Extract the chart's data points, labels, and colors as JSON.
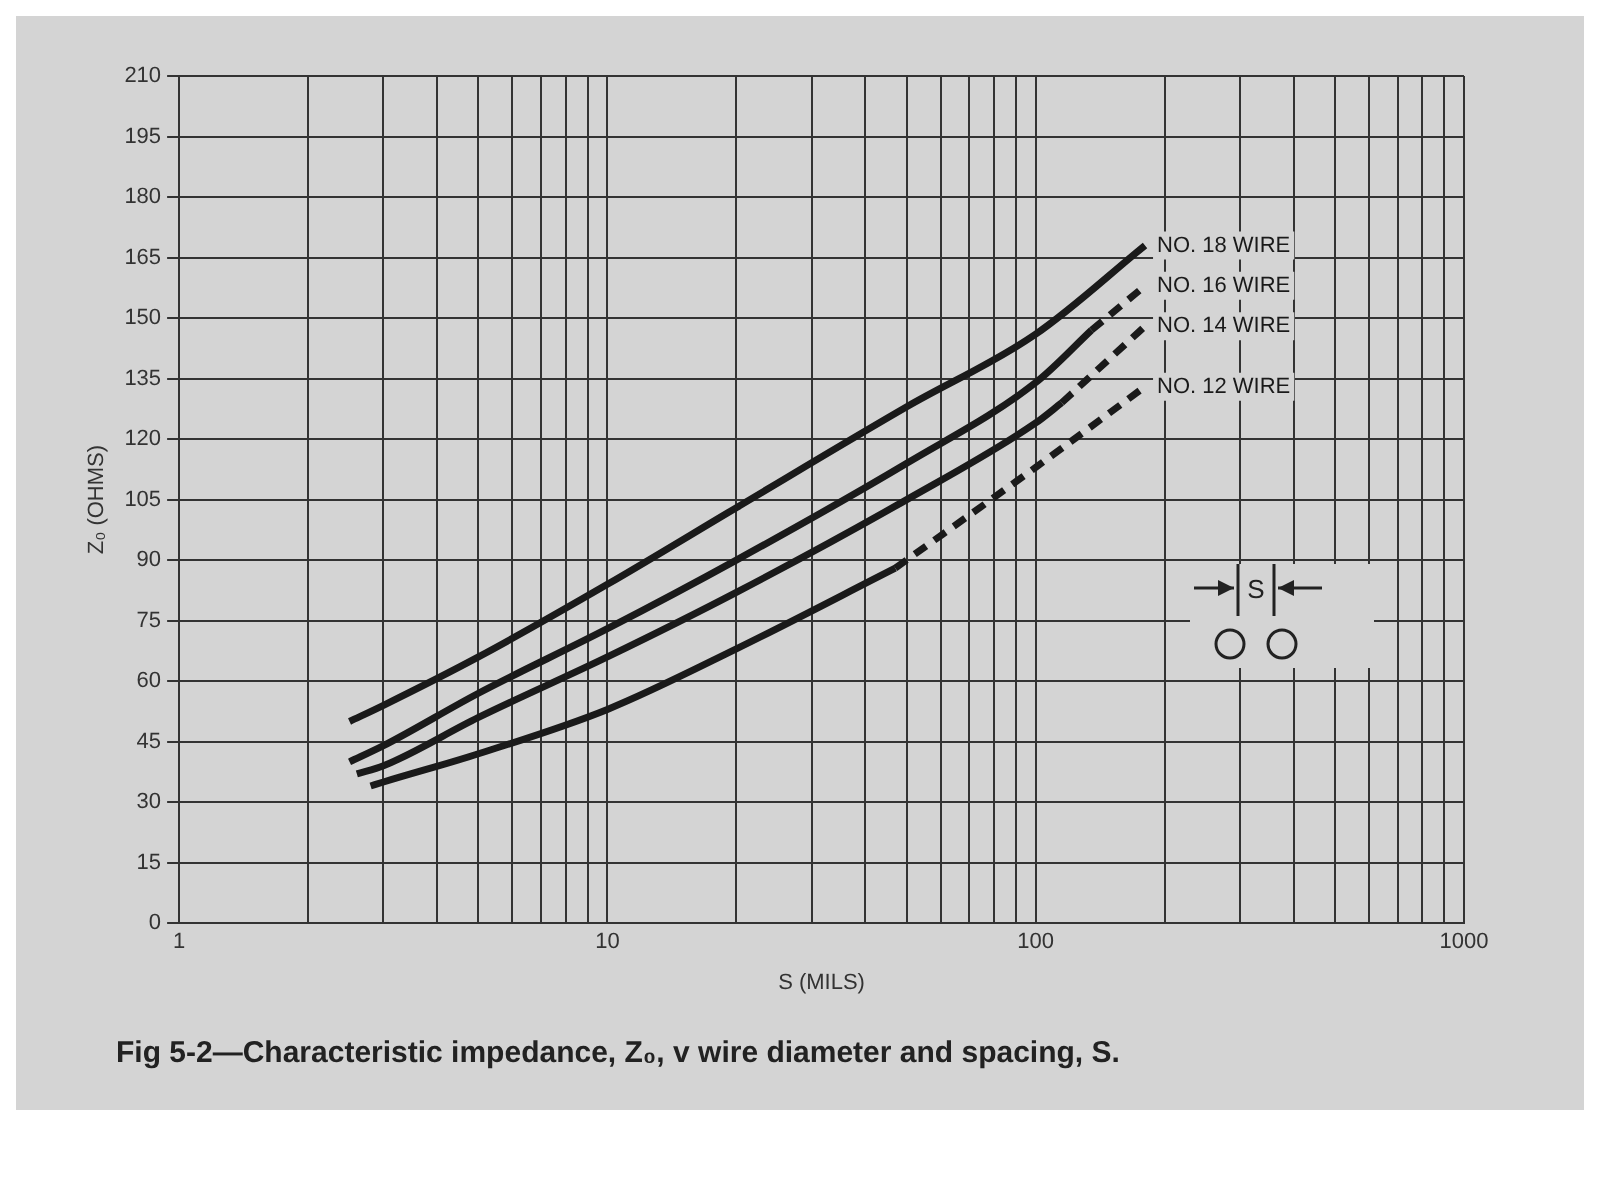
{
  "chart_data": {
    "type": "line",
    "xlabel": "S (MILS)",
    "ylabel": "Z₀ (OHMS)",
    "log": "x",
    "grid": true,
    "legend": false,
    "marker": "none",
    "xlim": [
      1,
      1000
    ],
    "xticks": [
      1,
      {
        "value": 2,
        "label": null
      },
      {
        "value": 3,
        "label": null
      },
      {
        "value": 4,
        "label": null
      },
      {
        "value": 5,
        "label": null
      },
      {
        "value": 6,
        "label": null
      },
      {
        "value": 7,
        "label": null
      },
      {
        "value": 8,
        "label": null
      },
      {
        "value": 9,
        "label": null
      },
      10,
      {
        "value": 20,
        "label": null
      },
      {
        "value": 30,
        "label": null
      },
      {
        "value": 40,
        "label": null
      },
      {
        "value": 50,
        "label": null
      },
      {
        "value": 60,
        "label": null
      },
      {
        "value": 70,
        "label": null
      },
      {
        "value": 80,
        "label": null
      },
      {
        "value": 90,
        "label": null
      },
      100,
      {
        "value": 200,
        "label": null
      },
      {
        "value": 300,
        "label": null
      },
      {
        "value": 400,
        "label": null
      },
      {
        "value": 500,
        "label": null
      },
      {
        "value": 600,
        "label": null
      },
      {
        "value": 700,
        "label": null
      },
      {
        "value": 800,
        "label": null
      },
      {
        "value": 900,
        "label": null
      },
      1000
    ],
    "ylim": [
      0,
      210
    ],
    "yticks": [
      0,
      15,
      30,
      45,
      60,
      75,
      90,
      105,
      120,
      135,
      150,
      165,
      180,
      195,
      210
    ],
    "series": [
      {
        "name": "NO. 18 WIRE",
        "color": "#1a1a1a",
        "line_style": "solid",
        "x": [
          2.5,
          3,
          5,
          10,
          20,
          50,
          100,
          180
        ],
        "values": [
          50,
          54,
          66,
          84,
          103,
          128,
          146,
          168
        ]
      },
      {
        "name": "NO. 16 WIRE",
        "color": "#1a1a1a",
        "line_style": "solid",
        "x": [
          2.5,
          3,
          5,
          10,
          20,
          50,
          100,
          135
        ],
        "values": [
          40,
          44,
          57,
          73,
          90,
          114,
          134,
          147
        ]
      },
      {
        "color": "#1a1a1a",
        "line_style": "dashed",
        "x": [
          135,
          180
        ],
        "values": [
          147,
          158
        ]
      },
      {
        "name": "NO. 14 WIRE",
        "color": "#1a1a1a",
        "line_style": "solid",
        "x": [
          2.6,
          3,
          5,
          10,
          20,
          50,
          100,
          115
        ],
        "values": [
          37,
          39,
          51,
          66,
          82,
          105,
          124,
          129
        ]
      },
      {
        "color": "#1a1a1a",
        "line_style": "dashed",
        "x": [
          115,
          180
        ],
        "values": [
          129,
          148
        ]
      },
      {
        "name": "NO. 12 WIRE",
        "color": "#1a1a1a",
        "line_style": "solid",
        "x": [
          2.8,
          3,
          5,
          10,
          20,
          47
        ],
        "values": [
          34,
          35,
          42,
          53,
          68,
          88
        ]
      },
      {
        "color": "#1a1a1a",
        "line_style": "dashed",
        "x": [
          47,
          100,
          180
        ],
        "values": [
          88,
          113,
          133
        ]
      }
    ],
    "annotations": [
      "S",
      "Fig 5-2—Characteristic impedance, Z₀, v wire diameter and spacing, S."
    ]
  }
}
